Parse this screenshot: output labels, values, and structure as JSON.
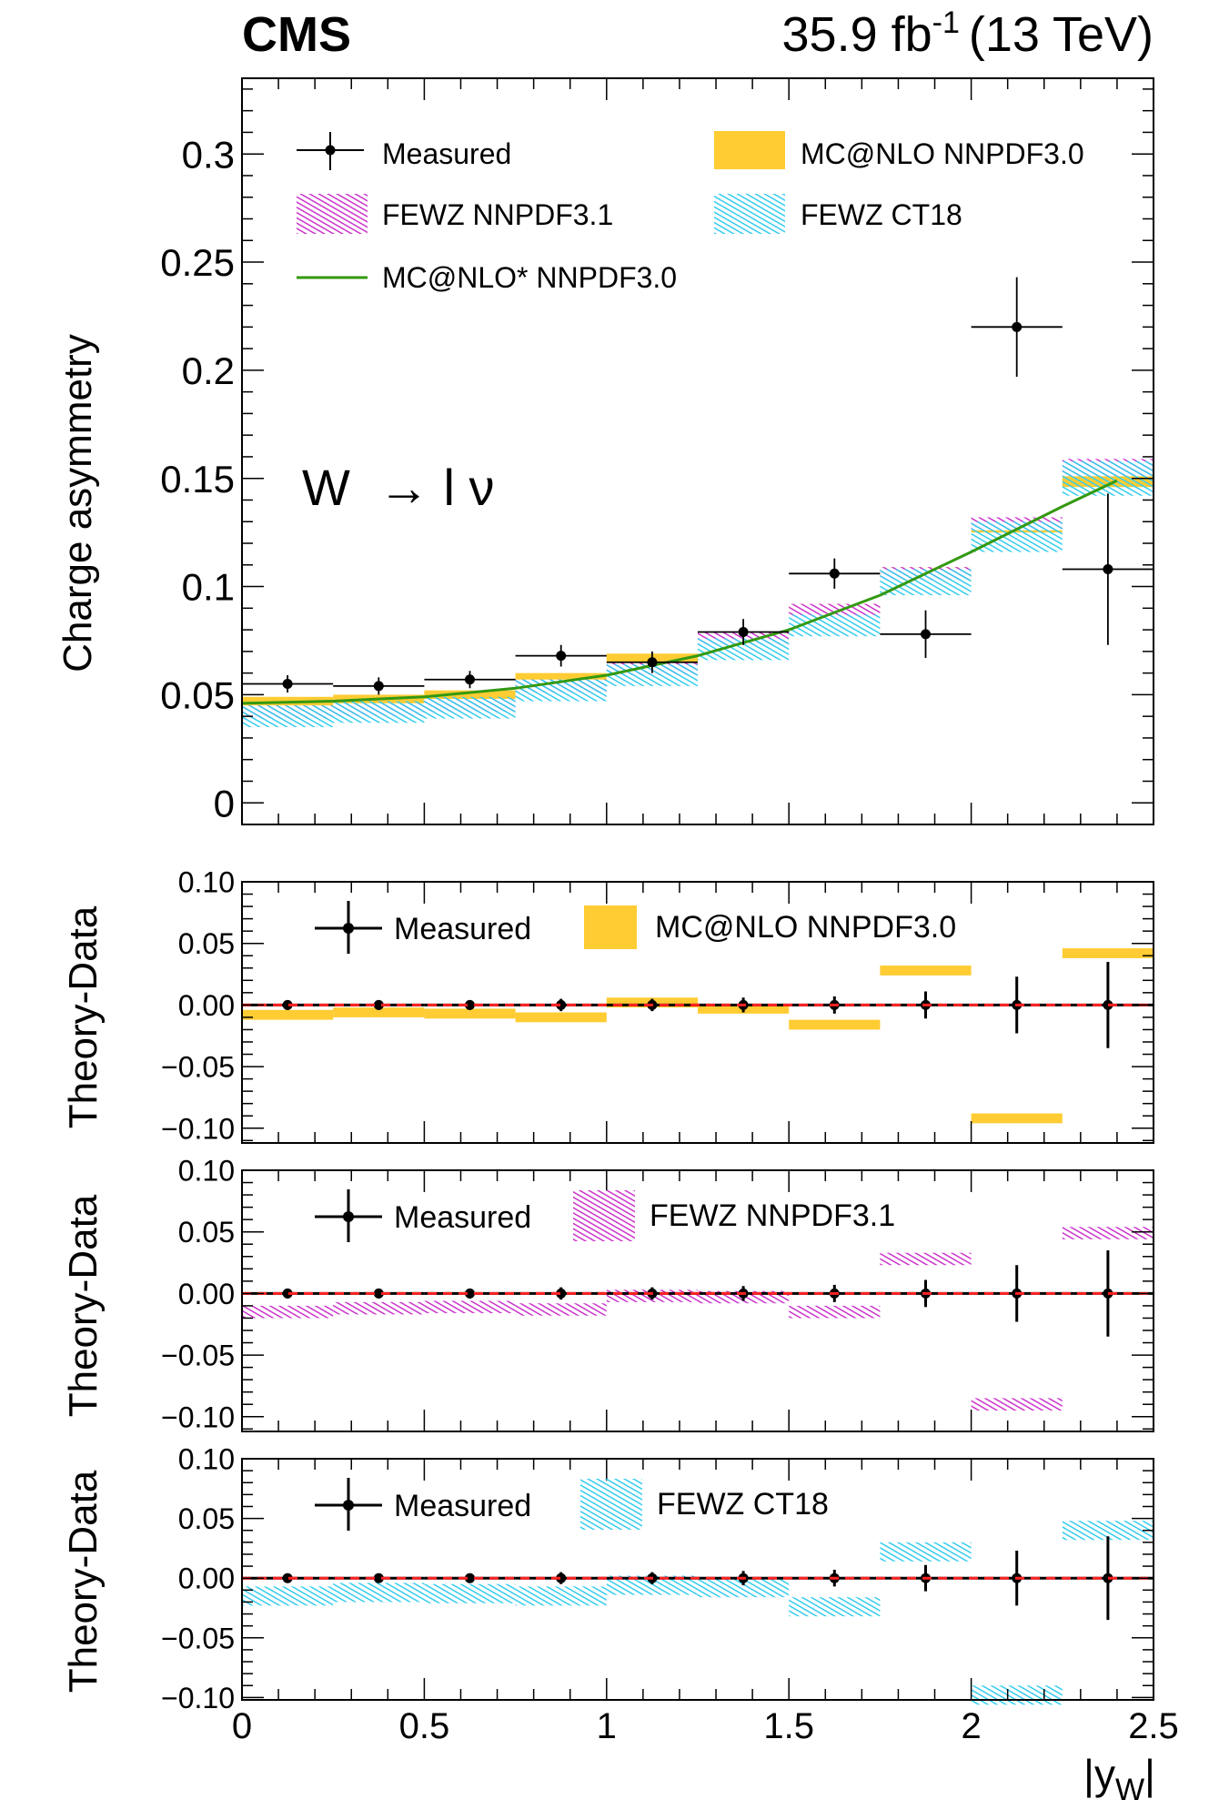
{
  "header": {
    "experiment": "CMS",
    "lumi": "35.9 fb",
    "lumi_exp": "-1",
    "energy": "(13 TeV)"
  },
  "colors": {
    "measured": "#000000",
    "mcnlo": "#ffcc33",
    "fewz_nnpdf": "#cc33cc",
    "fewz_ct18": "#33ccee",
    "mcnlo_star": "#339911",
    "zero_line": "#ff2222"
  },
  "chart_data": [
    {
      "type": "line",
      "title": "",
      "process_label": "W  → l ν",
      "ylabel": "Charge asymmetry",
      "xlabel": "|y_W|",
      "xlim": [
        0,
        2.5
      ],
      "ylim": [
        -0.01,
        0.335
      ],
      "yticks": [
        0,
        0.05,
        0.1,
        0.15,
        0.2,
        0.25,
        0.3
      ],
      "ytick_labels": [
        "0",
        "0.05",
        "0.1",
        "0.15",
        "0.2",
        "0.25",
        "0.3"
      ],
      "bin_edges": [
        0,
        0.25,
        0.5,
        0.75,
        1.0,
        1.25,
        1.5,
        1.75,
        2.0,
        2.25,
        2.5
      ],
      "legend": {
        "measured": "Measured",
        "mcnlo": "MC@NLO NNPDF3.0",
        "fewz_nnpdf": "FEWZ NNPDF3.1",
        "fewz_ct18": "FEWZ CT18",
        "mcnlo_star": "MC@NLO* NNPDF3.0"
      },
      "series": [
        {
          "name": "Measured",
          "x": [
            0.125,
            0.375,
            0.625,
            0.875,
            1.125,
            1.375,
            1.625,
            1.875,
            2.125,
            2.375
          ],
          "values": [
            0.055,
            0.054,
            0.057,
            0.068,
            0.065,
            0.079,
            0.106,
            0.078,
            0.22,
            0.108
          ],
          "yerr": [
            0.004,
            0.004,
            0.004,
            0.005,
            0.005,
            0.006,
            0.007,
            0.011,
            0.023,
            0.035
          ]
        },
        {
          "name": "MC@NLO NNPDF3.0",
          "values": [
            0.047,
            0.048,
            0.05,
            0.058,
            0.067,
            0.077,
            0.09,
            0.106,
            0.128,
            0.15
          ],
          "err": [
            0.002,
            0.002,
            0.002,
            0.002,
            0.002,
            0.002,
            0.002,
            0.003,
            0.003,
            0.004
          ]
        },
        {
          "name": "FEWZ NNPDF3.1",
          "values": [
            0.042,
            0.043,
            0.045,
            0.054,
            0.062,
            0.076,
            0.089,
            0.106,
            0.129,
            0.155
          ],
          "err": [
            0.003,
            0.003,
            0.003,
            0.003,
            0.003,
            0.003,
            0.003,
            0.003,
            0.003,
            0.004
          ]
        },
        {
          "name": "FEWZ CT18",
          "values": [
            0.04,
            0.042,
            0.044,
            0.052,
            0.059,
            0.071,
            0.082,
            0.102,
            0.123,
            0.15
          ],
          "err": [
            0.005,
            0.005,
            0.005,
            0.005,
            0.005,
            0.005,
            0.005,
            0.006,
            0.007,
            0.008
          ]
        },
        {
          "name": "MC@NLO* NNPDF3.0",
          "x": [
            0.0,
            0.25,
            0.5,
            0.75,
            1.0,
            1.25,
            1.5,
            1.75,
            2.0,
            2.25,
            2.4
          ],
          "values": [
            0.046,
            0.047,
            0.049,
            0.053,
            0.059,
            0.068,
            0.08,
            0.096,
            0.116,
            0.137,
            0.149
          ]
        }
      ]
    },
    {
      "type": "line",
      "ylabel": "Theory-Data",
      "ylim": [
        -0.112,
        0.1
      ],
      "yticks": [
        0.1,
        0.05,
        0.0,
        -0.05,
        -0.1
      ],
      "ytick_labels": [
        "0.10",
        "0.05",
        "0.00",
        "−0.05",
        "−0.10"
      ],
      "legend": {
        "measured": "Measured",
        "theory": "MC@NLO NNPDF3.0"
      },
      "measured_x": [
        0.125,
        0.375,
        0.625,
        0.875,
        1.125,
        1.375,
        1.625,
        1.875,
        2.125,
        2.375
      ],
      "measured_err": [
        0.004,
        0.004,
        0.004,
        0.005,
        0.005,
        0.006,
        0.007,
        0.011,
        0.023,
        0.035
      ],
      "series": [
        {
          "name": "MC@NLO NNPDF3.0",
          "values": [
            -0.008,
            -0.006,
            -0.007,
            -0.01,
            0.002,
            -0.003,
            -0.016,
            0.028,
            -0.092,
            0.042
          ]
        }
      ]
    },
    {
      "type": "line",
      "ylabel": "Theory-Data",
      "ylim": [
        -0.112,
        0.1
      ],
      "yticks": [
        0.1,
        0.05,
        0.0,
        -0.05,
        -0.1
      ],
      "ytick_labels": [
        "0.10",
        "0.05",
        "0.00",
        "−0.05",
        "−0.10"
      ],
      "legend": {
        "measured": "Measured",
        "theory": "FEWZ NNPDF3.1"
      },
      "measured_x": [
        0.125,
        0.375,
        0.625,
        0.875,
        1.125,
        1.375,
        1.625,
        1.875,
        2.125,
        2.375
      ],
      "measured_err": [
        0.004,
        0.004,
        0.004,
        0.005,
        0.005,
        0.006,
        0.007,
        0.011,
        0.023,
        0.035
      ],
      "series": [
        {
          "name": "FEWZ NNPDF3.1",
          "values": [
            -0.015,
            -0.012,
            -0.011,
            -0.013,
            -0.002,
            -0.003,
            -0.015,
            0.028,
            -0.09,
            0.049
          ]
        }
      ]
    },
    {
      "type": "line",
      "ylabel": "Theory-Data",
      "xlabel": "|y_W|",
      "ylim": [
        -0.102,
        0.1
      ],
      "yticks": [
        0.1,
        0.05,
        0.0,
        -0.05,
        -0.1
      ],
      "ytick_labels": [
        "0.10",
        "0.05",
        "0.00",
        "−0.05",
        "−0.10"
      ],
      "xticks": [
        0,
        0.5,
        1,
        1.5,
        2,
        2.5
      ],
      "xtick_labels": [
        "0",
        "0.5",
        "1",
        "1.5",
        "2",
        "2.5"
      ],
      "legend": {
        "measured": "Measured",
        "theory": "FEWZ CT18"
      },
      "measured_x": [
        0.125,
        0.375,
        0.625,
        0.875,
        1.125,
        1.375,
        1.625,
        1.875,
        2.125,
        2.375
      ],
      "measured_err": [
        0.004,
        0.004,
        0.004,
        0.005,
        0.005,
        0.006,
        0.007,
        0.011,
        0.023,
        0.035
      ],
      "series": [
        {
          "name": "FEWZ CT18",
          "values": [
            -0.015,
            -0.012,
            -0.013,
            -0.015,
            -0.006,
            -0.008,
            -0.024,
            0.022,
            -0.098,
            0.04
          ]
        }
      ]
    }
  ]
}
